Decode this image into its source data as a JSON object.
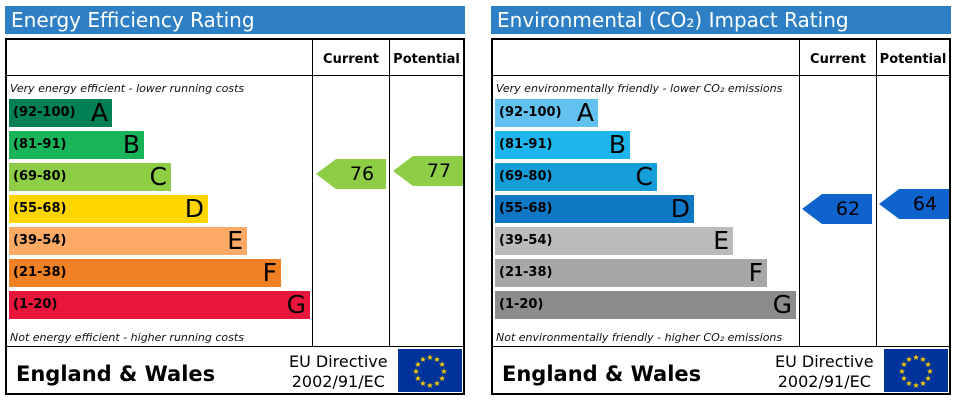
{
  "panels": [
    {
      "title": "Energy Efficiency Rating",
      "col_current": "Current",
      "col_potential": "Potential",
      "top_note": "Very energy efficient - lower running costs",
      "bottom_note": "Not energy efficient - higher running costs",
      "footer_region": "England & Wales",
      "footer_directive_line1": "EU Directive",
      "footer_directive_line2": "2002/91/EC",
      "flag_icon": "eu-flag-icon"
    },
    {
      "title": "Environmental (CO₂) Impact Rating",
      "col_current": "Current",
      "col_potential": "Potential",
      "top_note": "Very environmentally friendly - lower CO₂ emissions",
      "bottom_note": "Not environmentally friendly - higher CO₂ emissions",
      "footer_region": "England & Wales",
      "footer_directive_line1": "EU Directive",
      "footer_directive_line2": "2002/91/EC",
      "flag_icon": "eu-flag-icon"
    }
  ],
  "chart_data": [
    {
      "type": "bar",
      "title": "Energy Efficiency Rating",
      "categories": [
        "A",
        "B",
        "C",
        "D",
        "E",
        "F",
        "G"
      ],
      "ranges": [
        "(92-100)",
        "(81-91)",
        "(69-80)",
        "(55-68)",
        "(39-54)",
        "(21-38)",
        "(1-20)"
      ],
      "colors": [
        "#008054",
        "#19b459",
        "#8dce46",
        "#ffd500",
        "#fcaa65",
        "#ef8023",
        "#e9153b"
      ],
      "current": 76,
      "potential": 77,
      "current_color": "#8dce46",
      "potential_color": "#8dce46"
    },
    {
      "type": "bar",
      "title": "Environmental (CO₂) Impact Rating",
      "categories": [
        "A",
        "B",
        "C",
        "D",
        "E",
        "F",
        "G"
      ],
      "ranges": [
        "(92-100)",
        "(81-91)",
        "(69-80)",
        "(55-68)",
        "(39-54)",
        "(21-38)",
        "(1-20)"
      ],
      "colors": [
        "#63c1f0",
        "#1eb4ec",
        "#149dd7",
        "#0f78c4",
        "#bbbbbb",
        "#a7a7a7",
        "#8c8c8c"
      ],
      "current": 62,
      "potential": 64,
      "current_color": "#0f63cc",
      "potential_color": "#0f63cc"
    }
  ]
}
